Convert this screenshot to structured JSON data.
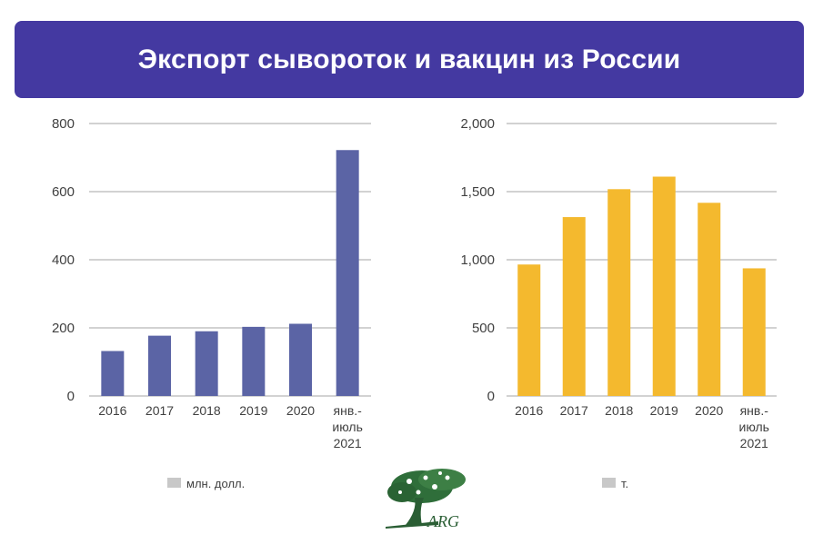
{
  "header": {
    "title": "Экспорт сывороток и вакцин из России"
  },
  "colors": {
    "header_bg": "#4439a1",
    "series_left": "#5b64a5",
    "series_right": "#f4b92e",
    "gridline": "#a6a6a6",
    "legend_swatch": "#c8c8c8",
    "logo_green": "#2f6e3a"
  },
  "logo": {
    "text": "ARG",
    "icon": "tree-icon"
  },
  "chart_data": [
    {
      "type": "bar",
      "title": "",
      "xlabel": "",
      "ylabel": "",
      "categories": [
        "2016",
        "2017",
        "2018",
        "2019",
        "2020",
        "янв.-июль 2021"
      ],
      "category_lines": [
        [
          "2016"
        ],
        [
          "2017"
        ],
        [
          "2018"
        ],
        [
          "2019"
        ],
        [
          "2020"
        ],
        [
          "янв.-",
          "июль",
          "2021"
        ]
      ],
      "series": [
        {
          "name": "млн. долл.",
          "values": [
            132,
            177,
            190,
            203,
            212,
            722
          ]
        }
      ],
      "ylim": [
        0,
        800
      ],
      "yticks": [
        0,
        200,
        400,
        600,
        800
      ],
      "ytick_labels": [
        "0",
        "200",
        "400",
        "600",
        "800"
      ],
      "grid": true,
      "legend": "bottom"
    },
    {
      "type": "bar",
      "title": "",
      "xlabel": "",
      "ylabel": "",
      "categories": [
        "2016",
        "2017",
        "2018",
        "2019",
        "2020",
        "янв.-июль 2021"
      ],
      "category_lines": [
        [
          "2016"
        ],
        [
          "2017"
        ],
        [
          "2018"
        ],
        [
          "2019"
        ],
        [
          "2020"
        ],
        [
          "янв.-",
          "июль",
          "2021"
        ]
      ],
      "series": [
        {
          "name": "т.",
          "values": [
            965,
            1313,
            1518,
            1610,
            1418,
            937
          ]
        }
      ],
      "ylim": [
        0,
        2000
      ],
      "yticks": [
        0,
        500,
        1000,
        1500,
        2000
      ],
      "ytick_labels": [
        "0",
        "500",
        "1,000",
        "1,500",
        "2,000"
      ],
      "grid": true,
      "legend": "bottom"
    }
  ]
}
